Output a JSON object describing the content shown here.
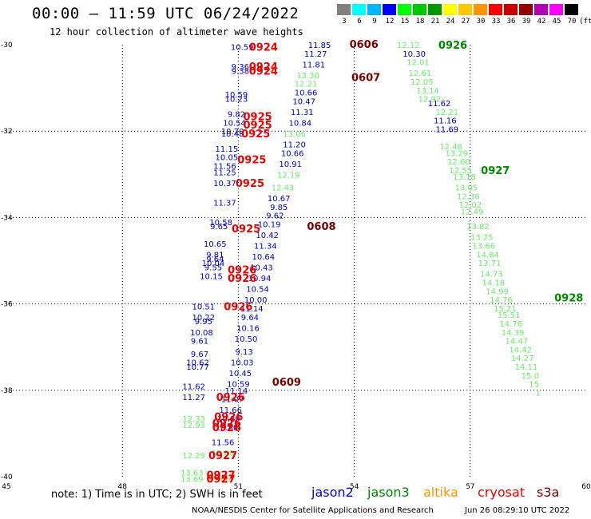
{
  "header": {
    "title": "00:00 – 11:59 UTC 06/24/2022",
    "subtitle": "12 hour collection of altimeter wave heights"
  },
  "legend": {
    "unit": "(ft)",
    "items": [
      {
        "label": "3",
        "color": "#808080"
      },
      {
        "label": "6",
        "color": "#00ffff"
      },
      {
        "label": "9",
        "color": "#00b4ff"
      },
      {
        "label": "12",
        "color": "#0000ff"
      },
      {
        "label": "15",
        "color": "#00ff00"
      },
      {
        "label": "18",
        "color": "#00c800"
      },
      {
        "label": "21",
        "color": "#009600"
      },
      {
        "label": "24",
        "color": "#ffff00"
      },
      {
        "label": "27",
        "color": "#ffc800"
      },
      {
        "label": "30",
        "color": "#ff9600"
      },
      {
        "label": "33",
        "color": "#ff0000"
      },
      {
        "label": "36",
        "color": "#c80000"
      },
      {
        "label": "39",
        "color": "#960000"
      },
      {
        "label": "42",
        "color": "#b400b4"
      },
      {
        "label": "45",
        "color": "#ff00ff"
      },
      {
        "label": "70",
        "color": "#000000"
      }
    ]
  },
  "chart_data": {
    "type": "map",
    "x_ticks": [
      "45",
      "48",
      "51",
      "54",
      "57",
      "60"
    ],
    "y_ticks": [
      "-30",
      "-32",
      "-34",
      "-36",
      "-38",
      "-40"
    ],
    "xlim": [
      45,
      60
    ],
    "ylim": [
      -40,
      -30
    ],
    "grid": true,
    "colors": {
      "jason2": "#0000cc",
      "jason3": "#66ee66",
      "jason3_date": "#008800",
      "cryosat": "#ee0000",
      "cryosat_date": "#7a0000"
    },
    "labels": [
      {
        "t": "10.59",
        "x": 51.1,
        "y": -30.05,
        "c": "jason2"
      },
      {
        "t": "9.36",
        "x": 51.05,
        "y": -30.5,
        "c": "jason2"
      },
      {
        "t": "9.38",
        "x": 51.05,
        "y": -30.6,
        "c": "jason2"
      },
      {
        "t": "10.59",
        "x": 50.95,
        "y": -31.15,
        "c": "jason2"
      },
      {
        "t": "10.23",
        "x": 50.95,
        "y": -31.25,
        "c": "jason2"
      },
      {
        "t": "9.82",
        "x": 50.95,
        "y": -31.6,
        "c": "jason2"
      },
      {
        "t": "10.54",
        "x": 50.9,
        "y": -31.8,
        "c": "jason2"
      },
      {
        "t": "10.70",
        "x": 50.85,
        "y": -32.0,
        "c": "jason2"
      },
      {
        "t": "10.48",
        "x": 50.85,
        "y": -32.05,
        "c": "jason2"
      },
      {
        "t": "11.15",
        "x": 50.7,
        "y": -32.4,
        "c": "jason2"
      },
      {
        "t": "10.05",
        "x": 50.7,
        "y": -32.6,
        "c": "jason2"
      },
      {
        "t": "11.56",
        "x": 50.65,
        "y": -32.8,
        "c": "jason2"
      },
      {
        "t": "11.25",
        "x": 50.65,
        "y": -32.95,
        "c": "jason2"
      },
      {
        "t": "10.37",
        "x": 50.65,
        "y": -33.2,
        "c": "jason2"
      },
      {
        "t": "11.37",
        "x": 50.65,
        "y": -33.65,
        "c": "jason2"
      },
      {
        "t": "10.58",
        "x": 50.55,
        "y": -34.1,
        "c": "jason2"
      },
      {
        "t": "9.65",
        "x": 50.5,
        "y": -34.2,
        "c": "jason2"
      },
      {
        "t": "10.65",
        "x": 50.4,
        "y": -34.6,
        "c": "jason2"
      },
      {
        "t": "9.81",
        "x": 50.4,
        "y": -34.85,
        "c": "jason2"
      },
      {
        "t": "9.64",
        "x": 50.4,
        "y": -34.95,
        "c": "jason2"
      },
      {
        "t": "10.04",
        "x": 50.35,
        "y": -35.05,
        "c": "jason2"
      },
      {
        "t": "9.55",
        "x": 50.35,
        "y": -35.15,
        "c": "jason2"
      },
      {
        "t": "10.15",
        "x": 50.3,
        "y": -35.35,
        "c": "jason2"
      },
      {
        "t": "10.51",
        "x": 50.1,
        "y": -36.05,
        "c": "jason2"
      },
      {
        "t": "10.22",
        "x": 50.1,
        "y": -36.3,
        "c": "jason2"
      },
      {
        "t": "9.95",
        "x": 50.1,
        "y": -36.4,
        "c": "jason2"
      },
      {
        "t": "10.08",
        "x": 50.05,
        "y": -36.65,
        "c": "jason2"
      },
      {
        "t": "9.61",
        "x": 50.0,
        "y": -36.85,
        "c": "jason2"
      },
      {
        "t": "9.67",
        "x": 50.0,
        "y": -37.15,
        "c": "jason2"
      },
      {
        "t": "10.62",
        "x": 49.95,
        "y": -37.35,
        "c": "jason2"
      },
      {
        "t": "10.77",
        "x": 49.95,
        "y": -37.45,
        "c": "jason2"
      },
      {
        "t": "11.62",
        "x": 49.85,
        "y": -37.9,
        "c": "jason2"
      },
      {
        "t": "11.27",
        "x": 49.85,
        "y": -38.15,
        "c": "jason2"
      },
      {
        "t": "11.85",
        "x": 53.1,
        "y": -30.0,
        "c": "jason2"
      },
      {
        "t": "11.27",
        "x": 53.0,
        "y": -30.2,
        "c": "jason2"
      },
      {
        "t": "11.81",
        "x": 52.95,
        "y": -30.45,
        "c": "jason2"
      },
      {
        "t": "10.66",
        "x": 52.75,
        "y": -31.1,
        "c": "jason2"
      },
      {
        "t": "10.47",
        "x": 52.7,
        "y": -31.3,
        "c": "jason2"
      },
      {
        "t": "11.31",
        "x": 52.65,
        "y": -31.55,
        "c": "jason2"
      },
      {
        "t": "10.84",
        "x": 52.6,
        "y": -31.8,
        "c": "jason2"
      },
      {
        "t": "11.20",
        "x": 52.45,
        "y": -32.3,
        "c": "jason2"
      },
      {
        "t": "10.66",
        "x": 52.4,
        "y": -32.5,
        "c": "jason2"
      },
      {
        "t": "10.91",
        "x": 52.35,
        "y": -32.75,
        "c": "jason2"
      },
      {
        "t": "10.67",
        "x": 52.05,
        "y": -33.55,
        "c": "jason2"
      },
      {
        "t": "9.85",
        "x": 52.05,
        "y": -33.75,
        "c": "jason2"
      },
      {
        "t": "9.62",
        "x": 51.95,
        "y": -33.95,
        "c": "jason2"
      },
      {
        "t": "10.19",
        "x": 51.8,
        "y": -34.15,
        "c": "jason2"
      },
      {
        "t": "10.42",
        "x": 51.75,
        "y": -34.4,
        "c": "jason2"
      },
      {
        "t": "11.34",
        "x": 51.7,
        "y": -34.65,
        "c": "jason2"
      },
      {
        "t": "10.64",
        "x": 51.65,
        "y": -34.9,
        "c": "jason2"
      },
      {
        "t": "10.43",
        "x": 51.6,
        "y": -35.15,
        "c": "jason2"
      },
      {
        "t": "10.94",
        "x": 51.55,
        "y": -35.4,
        "c": "jason2"
      },
      {
        "t": "10.54",
        "x": 51.5,
        "y": -35.65,
        "c": "jason2"
      },
      {
        "t": "10.00",
        "x": 51.45,
        "y": -35.9,
        "c": "jason2"
      },
      {
        "t": "11.14",
        "x": 51.35,
        "y": -36.1,
        "c": "jason2"
      },
      {
        "t": "9.64",
        "x": 51.3,
        "y": -36.3,
        "c": "jason2"
      },
      {
        "t": "10.16",
        "x": 51.25,
        "y": -36.55,
        "c": "jason2"
      },
      {
        "t": "10.50",
        "x": 51.2,
        "y": -36.8,
        "c": "jason2"
      },
      {
        "t": "9.13",
        "x": 51.15,
        "y": -37.1,
        "c": "jason2"
      },
      {
        "t": "10.03",
        "x": 51.1,
        "y": -37.35,
        "c": "jason2"
      },
      {
        "t": "10.45",
        "x": 51.05,
        "y": -37.6,
        "c": "jason2"
      },
      {
        "t": "10.59",
        "x": 51.0,
        "y": -37.85,
        "c": "jason2"
      },
      {
        "t": "11.14",
        "x": 50.95,
        "y": -38.0,
        "c": "jason2"
      },
      {
        "t": "11.07",
        "x": 50.85,
        "y": -38.2,
        "c": "jason2"
      },
      {
        "t": "11.66",
        "x": 50.8,
        "y": -38.45,
        "c": "jason2"
      },
      {
        "t": "10.89",
        "x": 50.75,
        "y": -38.65,
        "c": "jason2"
      },
      {
        "t": "10.80",
        "x": 50.7,
        "y": -38.85,
        "c": "jason2"
      },
      {
        "t": "11.56",
        "x": 50.6,
        "y": -39.2,
        "c": "jason2"
      },
      {
        "t": "10.30",
        "x": 55.55,
        "y": -30.2,
        "c": "jason2"
      },
      {
        "t": "11.62",
        "x": 56.2,
        "y": -31.35,
        "c": "jason2"
      },
      {
        "t": "11.16",
        "x": 56.35,
        "y": -31.75,
        "c": "jason2"
      },
      {
        "t": "11.69",
        "x": 56.4,
        "y": -31.95,
        "c": "jason2"
      },
      {
        "t": "12.12",
        "x": 55.4,
        "y": -30.0,
        "c": "jason3"
      },
      {
        "t": "12.01",
        "x": 55.65,
        "y": -30.4,
        "c": "jason3"
      },
      {
        "t": "12.61",
        "x": 55.7,
        "y": -30.65,
        "c": "jason3"
      },
      {
        "t": "12.05",
        "x": 55.75,
        "y": -30.85,
        "c": "jason3"
      },
      {
        "t": "13.14",
        "x": 55.9,
        "y": -31.05,
        "c": "jason3"
      },
      {
        "t": "12.92",
        "x": 55.95,
        "y": -31.25,
        "c": "jason3"
      },
      {
        "t": "12.21",
        "x": 56.4,
        "y": -31.55,
        "c": "jason3"
      },
      {
        "t": "12.48",
        "x": 56.5,
        "y": -32.35,
        "c": "jason3"
      },
      {
        "t": "13.29",
        "x": 56.65,
        "y": -32.5,
        "c": "jason3"
      },
      {
        "t": "12.60",
        "x": 56.7,
        "y": -32.7,
        "c": "jason3"
      },
      {
        "t": "12.55",
        "x": 56.75,
        "y": -32.9,
        "c": "jason3"
      },
      {
        "t": "13.18",
        "x": 56.85,
        "y": -33.05,
        "c": "jason3"
      },
      {
        "t": "13.05",
        "x": 56.9,
        "y": -33.3,
        "c": "jason3"
      },
      {
        "t": "12.36",
        "x": 56.95,
        "y": -33.5,
        "c": "jason3"
      },
      {
        "t": "12.02",
        "x": 57.0,
        "y": -33.7,
        "c": "jason3"
      },
      {
        "t": "12.49",
        "x": 57.05,
        "y": -33.85,
        "c": "jason3"
      },
      {
        "t": "13.82",
        "x": 57.2,
        "y": -34.2,
        "c": "jason3"
      },
      {
        "t": "13.25",
        "x": 57.3,
        "y": -34.45,
        "c": "jason3"
      },
      {
        "t": "13.66",
        "x": 57.35,
        "y": -34.65,
        "c": "jason3"
      },
      {
        "t": "14.84",
        "x": 57.45,
        "y": -34.85,
        "c": "jason3"
      },
      {
        "t": "13.71",
        "x": 57.5,
        "y": -35.05,
        "c": "jason3"
      },
      {
        "t": "14.73",
        "x": 57.55,
        "y": -35.3,
        "c": "jason3"
      },
      {
        "t": "14.18",
        "x": 57.6,
        "y": -35.5,
        "c": "jason3"
      },
      {
        "t": "14.99",
        "x": 57.7,
        "y": -35.7,
        "c": "jason3"
      },
      {
        "t": "14.76",
        "x": 57.8,
        "y": -35.9,
        "c": "jason3"
      },
      {
        "t": "15.21",
        "x": 57.9,
        "y": -36.1,
        "c": "jason3"
      },
      {
        "t": "15.51",
        "x": 58.0,
        "y": -36.25,
        "c": "jason3"
      },
      {
        "t": "14.76",
        "x": 58.05,
        "y": -36.45,
        "c": "jason3"
      },
      {
        "t": "14.39",
        "x": 58.1,
        "y": -36.65,
        "c": "jason3"
      },
      {
        "t": "14.47",
        "x": 58.2,
        "y": -36.85,
        "c": "jason3"
      },
      {
        "t": "14.42",
        "x": 58.3,
        "y": -37.05,
        "c": "jason3"
      },
      {
        "t": "14.27",
        "x": 58.35,
        "y": -37.25,
        "c": "jason3"
      },
      {
        "t": "14.11",
        "x": 58.45,
        "y": -37.45,
        "c": "jason3"
      },
      {
        "t": "15.0",
        "x": 58.55,
        "y": -37.65,
        "c": "jason3"
      },
      {
        "t": "15",
        "x": 58.65,
        "y": -37.85,
        "c": "jason3"
      },
      {
        "t": "1",
        "x": 58.75,
        "y": -38.05,
        "c": "jason3"
      },
      {
        "t": "13.30",
        "x": 52.8,
        "y": -30.7,
        "c": "jason3"
      },
      {
        "t": "12.21",
        "x": 52.75,
        "y": -30.9,
        "c": "jason3"
      },
      {
        "t": "13.06",
        "x": 52.45,
        "y": -32.05,
        "c": "jason3"
      },
      {
        "t": "12.19",
        "x": 52.3,
        "y": -33.0,
        "c": "jason3"
      },
      {
        "t": "12.43",
        "x": 52.15,
        "y": -33.3,
        "c": "jason3"
      },
      {
        "t": "12.33",
        "x": 49.85,
        "y": -38.65,
        "c": "jason3"
      },
      {
        "t": "12.93",
        "x": 49.85,
        "y": -38.8,
        "c": "jason3"
      },
      {
        "t": "12.29",
        "x": 49.85,
        "y": -39.5,
        "c": "jason3"
      },
      {
        "t": "12.80",
        "x": 50.6,
        "y": -39.45,
        "c": "jason3"
      },
      {
        "t": "13.63",
        "x": 49.8,
        "y": -39.9,
        "c": "jason3"
      },
      {
        "t": "13.69",
        "x": 49.8,
        "y": -40.05,
        "c": "jason3"
      },
      {
        "t": "13.66",
        "x": 50.5,
        "y": -40.05,
        "c": "jason3"
      }
    ],
    "passes": [
      {
        "t": "0924",
        "x": 51.65,
        "y": -30.05,
        "c": "cryosat"
      },
      {
        "t": "0924",
        "x": 51.65,
        "y": -30.5,
        "c": "cryosat"
      },
      {
        "t": "0924",
        "x": 51.65,
        "y": -30.6,
        "c": "cryosat"
      },
      {
        "t": "0925",
        "x": 51.5,
        "y": -31.65,
        "c": "cryosat"
      },
      {
        "t": "0925",
        "x": 51.5,
        "y": -31.85,
        "c": "cryosat"
      },
      {
        "t": "0925",
        "x": 51.45,
        "y": -32.05,
        "c": "cryosat"
      },
      {
        "t": "0925",
        "x": 51.35,
        "y": -32.65,
        "c": "cryosat"
      },
      {
        "t": "0925",
        "x": 51.3,
        "y": -33.2,
        "c": "cryosat"
      },
      {
        "t": "0925",
        "x": 51.2,
        "y": -34.25,
        "c": "cryosat"
      },
      {
        "t": "0926",
        "x": 51.1,
        "y": -35.2,
        "c": "cryosat"
      },
      {
        "t": "0926",
        "x": 51.1,
        "y": -35.4,
        "c": "cryosat"
      },
      {
        "t": "0926",
        "x": 51.0,
        "y": -36.05,
        "c": "cryosat"
      },
      {
        "t": "0926",
        "x": 50.8,
        "y": -38.15,
        "c": "cryosat"
      },
      {
        "t": "0926",
        "x": 50.75,
        "y": -38.6,
        "c": "cryosat"
      },
      {
        "t": "0926",
        "x": 50.7,
        "y": -38.75,
        "c": "cryosat"
      },
      {
        "t": "0926",
        "x": 50.7,
        "y": -38.85,
        "c": "cryosat"
      },
      {
        "t": "0927",
        "x": 50.6,
        "y": -39.5,
        "c": "cryosat"
      },
      {
        "t": "0927",
        "x": 50.55,
        "y": -39.95,
        "c": "cryosat"
      },
      {
        "t": "0927",
        "x": 50.55,
        "y": -40.05,
        "c": "cryosat"
      },
      {
        "t": "0606",
        "x": 54.25,
        "y": -29.98,
        "c": "cryosat_date"
      },
      {
        "t": "0607",
        "x": 54.3,
        "y": -30.75,
        "c": "cryosat_date"
      },
      {
        "t": "0608",
        "x": 53.15,
        "y": -34.2,
        "c": "cryosat_date"
      },
      {
        "t": "0609",
        "x": 52.25,
        "y": -37.8,
        "c": "cryosat_date"
      },
      {
        "t": "0926",
        "x": 56.55,
        "y": -30.0,
        "c": "jason3_date"
      },
      {
        "t": "0927",
        "x": 57.65,
        "y": -32.9,
        "c": "jason3_date"
      },
      {
        "t": "0928",
        "x": 59.55,
        "y": -35.85,
        "c": "jason3_date"
      }
    ]
  },
  "footer": {
    "note": "note: 1) Time is in UTC; 2) SWH is in feet",
    "satellites": [
      {
        "name": "jason2",
        "color": "#0000cc"
      },
      {
        "name": "jason3",
        "color": "#008800"
      },
      {
        "name": "altika",
        "color": "#ff9600"
      },
      {
        "name": "cryosat",
        "color": "#ee0000"
      },
      {
        "name": "s3a",
        "color": "#7a0000"
      }
    ],
    "credit": "NOAA/NESDIS Center for Satellite Applications and Research",
    "timestamp": "Jun 26 08:29:10 UTC 2022"
  }
}
